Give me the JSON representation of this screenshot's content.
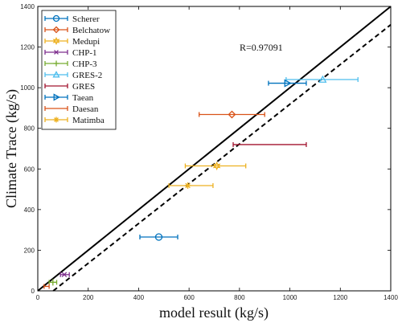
{
  "chart_data": {
    "type": "scatter",
    "xlabel": "model result (kg/s)",
    "ylabel": "Climate Trace (kg/s)",
    "xlim": [
      0,
      1400
    ],
    "ylim": [
      0,
      1400
    ],
    "xticks": [
      0,
      200,
      400,
      600,
      800,
      1000,
      1200,
      1400
    ],
    "yticks": [
      0,
      200,
      400,
      600,
      800,
      1000,
      1200,
      1400
    ],
    "annotation": "R=0.97091",
    "legend_position": "top-left",
    "grid": false,
    "series": [
      {
        "name": "Scherer",
        "color": "#0072BD",
        "marker": "circle",
        "x": 480,
        "y": 265,
        "xerr": [
          405,
          555
        ]
      },
      {
        "name": "Belchatow",
        "color": "#D95319",
        "marker": "diamond",
        "x": 770,
        "y": 868,
        "xerr": [
          640,
          900
        ]
      },
      {
        "name": "Medupi",
        "color": "#EDB120",
        "marker": "hexagram",
        "x": 710,
        "y": 615,
        "xerr": [
          585,
          825
        ]
      },
      {
        "name": "CHP-1",
        "color": "#7E2F8E",
        "marker": "x",
        "x": 105,
        "y": 80,
        "xerr": [
          90,
          125
        ]
      },
      {
        "name": "CHP-3",
        "color": "#77AC30",
        "marker": "plus",
        "x": 60,
        "y": 42,
        "xerr": [
          45,
          75
        ]
      },
      {
        "name": "GRES-2",
        "color": "#4DBEEE",
        "marker": "triangle-up",
        "x": 1130,
        "y": 1040,
        "xerr": [
          985,
          1270
        ]
      },
      {
        "name": "GRES",
        "color": "#A2142F",
        "marker": "none",
        "x": 925,
        "y": 720,
        "xerr": [
          775,
          1065
        ]
      },
      {
        "name": "Taean",
        "color": "#0072BD",
        "marker": "triangle-right",
        "x": 990,
        "y": 1022,
        "xerr": [
          915,
          1065
        ]
      },
      {
        "name": "Daesan",
        "color": "#D95319",
        "marker": "none",
        "x": 35,
        "y": 22,
        "xerr": [
          25,
          45
        ]
      },
      {
        "name": "Matimba",
        "color": "#EDB120",
        "marker": "asterisk",
        "x": 595,
        "y": 518,
        "xerr": [
          520,
          695
        ]
      }
    ],
    "lines": [
      {
        "style": "solid",
        "points": [
          [
            0,
            0
          ],
          [
            1400,
            1400
          ]
        ]
      },
      {
        "style": "dashed",
        "points": [
          [
            0,
            -60
          ],
          [
            1400,
            1310
          ]
        ]
      }
    ]
  }
}
